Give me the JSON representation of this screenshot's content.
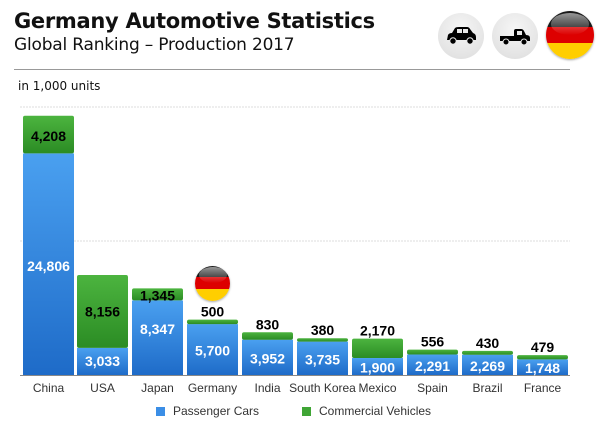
{
  "header": {
    "title": "Germany Automotive Statistics",
    "subtitle": "Global Ranking – Production 2017",
    "unit_note": "in 1,000 units",
    "icons": [
      "passenger-car-icon",
      "pickup-truck-icon",
      "germany-flag-icon"
    ]
  },
  "colors": {
    "passenger": "#3b8ee6",
    "passenger_dark": "#1f6cc9",
    "commercial": "#3fa535",
    "commercial_dark": "#2d8a26",
    "flag_black": "#1a1a1a",
    "flag_red": "#dd0000",
    "flag_gold": "#ffce00"
  },
  "chart_data": {
    "type": "bar",
    "stacked": true,
    "title": "Germany Automotive Statistics",
    "subtitle": "Global Ranking – Production 2017",
    "xlabel": "",
    "ylabel": "in 1,000 units",
    "ylim": [
      0,
      30000
    ],
    "grid": true,
    "gridlines": [
      15000,
      30000
    ],
    "legend_position": "bottom",
    "highlight_category": "Germany",
    "categories": [
      "China",
      "USA",
      "Japan",
      "Germany",
      "India",
      "South Korea",
      "Mexico",
      "Spain",
      "Brazil",
      "France"
    ],
    "series": [
      {
        "name": "Passenger Cars",
        "values": [
          24806,
          3033,
          8347,
          5700,
          3952,
          3735,
          1900,
          2291,
          2269,
          1748
        ],
        "labels": [
          "24,806",
          "3,033",
          "8,347",
          "5,700",
          "3,952",
          "3,735",
          "1,900",
          "2,291",
          "2,269",
          "1,748"
        ]
      },
      {
        "name": "Commercial Vehicles",
        "values": [
          4208,
          8156,
          1345,
          500,
          830,
          380,
          2170,
          556,
          430,
          479
        ],
        "labels": [
          "4,208",
          "8,156",
          "1,345",
          "500",
          "830",
          "380",
          "2,170",
          "556",
          "430",
          "479"
        ]
      }
    ]
  },
  "legend": {
    "passenger_label": "Passenger Cars",
    "commercial_label": "Commercial Vehicles"
  }
}
